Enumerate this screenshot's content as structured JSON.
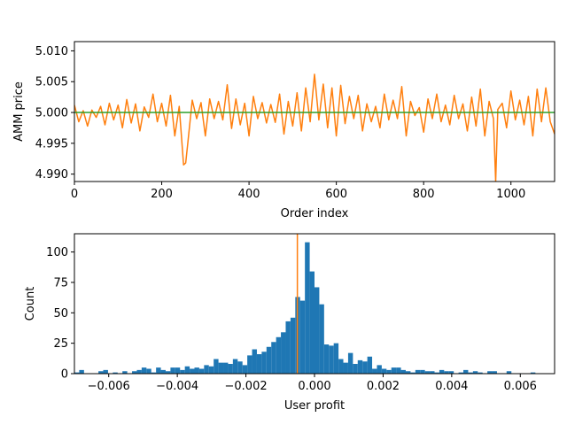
{
  "chart_data": [
    {
      "type": "line",
      "title": "",
      "xlabel": "Order index",
      "ylabel": "AMM price",
      "xlim": [
        0,
        1100
      ],
      "ylim": [
        4.9888,
        5.0115
      ],
      "xticks": [
        0,
        200,
        400,
        600,
        800,
        1000
      ],
      "xtick_labels": [
        "0",
        "200",
        "400",
        "600",
        "800",
        "1000"
      ],
      "yticks": [
        4.99,
        4.995,
        5.0,
        5.005,
        5.01
      ],
      "ytick_labels": [
        "4.990",
        "4.995",
        "5.000",
        "5.005",
        "5.010"
      ],
      "grid": false,
      "series": [
        {
          "color": "#ff7f0e",
          "x": [
            0,
            10,
            20,
            30,
            40,
            50,
            60,
            70,
            80,
            90,
            100,
            110,
            120,
            130,
            140,
            150,
            160,
            170,
            180,
            190,
            200,
            210,
            220,
            230,
            240,
            250,
            255,
            260,
            270,
            280,
            290,
            300,
            310,
            320,
            330,
            340,
            350,
            360,
            370,
            380,
            390,
            400,
            410,
            420,
            430,
            440,
            450,
            460,
            470,
            480,
            490,
            500,
            510,
            520,
            530,
            540,
            550,
            560,
            570,
            580,
            590,
            600,
            610,
            620,
            630,
            640,
            650,
            660,
            670,
            680,
            690,
            700,
            710,
            720,
            730,
            740,
            750,
            760,
            770,
            780,
            790,
            800,
            810,
            820,
            830,
            840,
            850,
            860,
            870,
            880,
            890,
            900,
            910,
            920,
            930,
            940,
            950,
            960,
            965,
            970,
            980,
            990,
            1000,
            1010,
            1020,
            1030,
            1040,
            1050,
            1060,
            1070,
            1080,
            1090,
            1100
          ],
          "y": [
            5.0012,
            4.9985,
            5.0003,
            4.9978,
            5.0004,
            4.9992,
            5.001,
            4.998,
            5.0015,
            4.9988,
            5.0012,
            4.9975,
            5.0021,
            4.9983,
            5.0014,
            4.997,
            5.0009,
            4.9992,
            5.003,
            4.9985,
            5.0015,
            4.9978,
            5.0028,
            4.9962,
            5.001,
            4.9915,
            4.9918,
            4.9952,
            5.002,
            4.999,
            5.0016,
            4.9962,
            5.0022,
            4.999,
            5.0018,
            4.9988,
            5.0045,
            4.9974,
            5.0022,
            4.998,
            5.0015,
            4.9962,
            5.0026,
            4.999,
            5.0016,
            4.9983,
            5.0013,
            4.9984,
            5.003,
            4.9965,
            5.0018,
            4.9978,
            5.0032,
            4.997,
            5.004,
            4.9985,
            5.0062,
            4.9988,
            5.0046,
            4.9975,
            5.004,
            4.9962,
            5.0044,
            4.9982,
            5.0026,
            4.999,
            5.0028,
            4.997,
            5.0014,
            4.9985,
            5.001,
            4.9975,
            5.003,
            4.9988,
            5.002,
            4.999,
            5.0042,
            4.9962,
            5.0018,
            4.9995,
            5.0008,
            4.9968,
            5.0022,
            4.999,
            5.003,
            4.9985,
            5.0012,
            4.998,
            5.0028,
            4.999,
            5.0014,
            4.997,
            5.0025,
            4.9978,
            5.0038,
            4.9962,
            5.0018,
            4.999,
            4.9888,
            5.0005,
            5.0015,
            4.9975,
            5.0035,
            4.9988,
            5.002,
            4.998,
            5.0026,
            4.9962,
            5.0038,
            4.9985,
            5.004,
            4.9985,
            4.9965
          ]
        },
        {
          "color": "#2ca02c",
          "x": [
            0,
            1100
          ],
          "y": [
            5.0,
            5.0
          ]
        }
      ]
    },
    {
      "type": "bar",
      "subtype": "histogram",
      "title": "",
      "xlabel": "User profit",
      "ylabel": "Count",
      "xlim": [
        -0.007,
        0.007
      ],
      "ylim": [
        0,
        115
      ],
      "xticks": [
        -0.006,
        -0.004,
        -0.002,
        0.0,
        0.002,
        0.004,
        0.006
      ],
      "xtick_labels": [
        "−0.006",
        "−0.004",
        "−0.002",
        "0.000",
        "0.002",
        "0.004",
        "0.006"
      ],
      "yticks": [
        0,
        25,
        50,
        75,
        100
      ],
      "ytick_labels": [
        "0",
        "25",
        "50",
        "75",
        "100"
      ],
      "grid": false,
      "bar_color": "#1f77b4",
      "bin_start": -0.007,
      "bin_width": 0.00014,
      "counts": [
        1,
        3,
        0,
        0,
        0,
        2,
        3,
        0,
        1,
        0,
        2,
        0,
        2,
        3,
        5,
        4,
        1,
        5,
        3,
        2,
        5,
        5,
        3,
        6,
        4,
        5,
        4,
        7,
        6,
        12,
        9,
        9,
        8,
        12,
        10,
        7,
        15,
        20,
        16,
        18,
        22,
        26,
        30,
        34,
        43,
        46,
        63,
        60,
        108,
        84,
        71,
        57,
        24,
        23,
        25,
        12,
        9,
        17,
        8,
        11,
        10,
        14,
        4,
        7,
        4,
        3,
        5,
        5,
        3,
        2,
        1,
        3,
        3,
        2,
        2,
        1,
        3,
        2,
        2,
        0,
        1,
        3,
        1,
        2,
        1,
        0,
        2,
        2,
        0,
        0,
        2,
        0,
        0,
        0,
        0,
        1,
        0,
        0,
        0,
        0
      ],
      "marker": {
        "color": "#ff7f0e",
        "x": -0.0005
      }
    }
  ]
}
